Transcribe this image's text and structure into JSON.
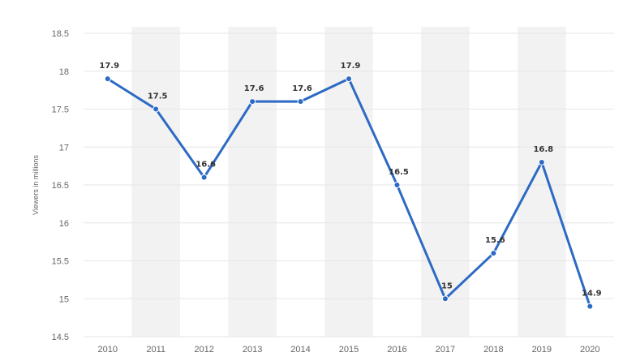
{
  "chart_data": {
    "type": "line",
    "categories": [
      "2010",
      "2011",
      "2012",
      "2013",
      "2014",
      "2015",
      "2016",
      "2017",
      "2018",
      "2019",
      "2020"
    ],
    "values": [
      17.9,
      17.5,
      16.6,
      17.6,
      17.6,
      17.9,
      16.5,
      15,
      15.6,
      16.8,
      14.9
    ],
    "data_labels": [
      "17.9",
      "17.5",
      "16.6",
      "17.6",
      "17.6",
      "17.9",
      "16.5",
      "15",
      "15.6",
      "16.8",
      "14.9"
    ],
    "yticks": [
      "14.5",
      "15",
      "15.5",
      "16",
      "16.5",
      "17",
      "17.5",
      "18",
      "18.5"
    ],
    "ylim": [
      14.5,
      18.5
    ],
    "ylabel": "Viewers in millions",
    "xlabel": "",
    "title": "",
    "grid": true,
    "colors": {
      "line": "#2d6ac4",
      "band": "#f2f2f2",
      "grid": "#e6e6e6"
    }
  }
}
